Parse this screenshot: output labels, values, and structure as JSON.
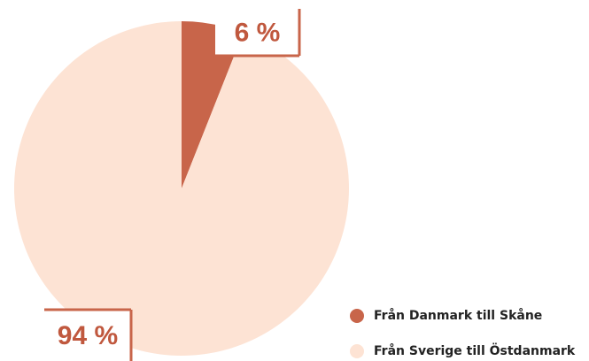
{
  "chart_data": {
    "type": "pie",
    "categories": [
      "Från Danmark till Skåne",
      "Från Sverige till Östdanmark"
    ],
    "values": [
      6,
      94
    ],
    "value_labels": [
      "6 %",
      "94 %"
    ],
    "colors": [
      "#c8654a",
      "#fde3d4"
    ]
  }
}
